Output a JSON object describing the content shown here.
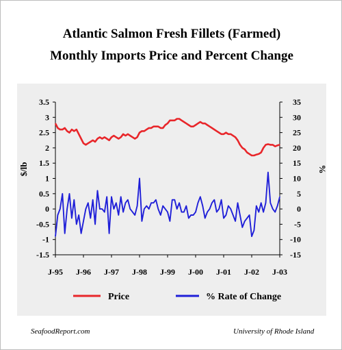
{
  "title_line1": "Atlantic Salmon Fresh Fillets (Farmed)",
  "title_line2": "Monthly Imports Price and Percent Change",
  "footer_left": "SeafoodReport.com",
  "footer_right": "University of Rhode Island",
  "colors": {
    "price": "#e8262a",
    "change": "#1f1fd8",
    "panel": "#eeeeee"
  },
  "chart_data": {
    "type": "line",
    "ylabel_left": "$/lb",
    "ylabel_right": "%",
    "ylim_left": [
      -1.5,
      3.5
    ],
    "ylim_right": [
      -15,
      35
    ],
    "yticks_left": [
      "3.5",
      "3",
      "2.5",
      "2",
      "1.5",
      "1",
      "0.5",
      "0",
      "-0.5",
      "-1",
      "-1.5"
    ],
    "yticks_right": [
      "35",
      "30",
      "25",
      "20",
      "15",
      "10",
      "5",
      "0",
      "-5",
      "-10",
      "-15"
    ],
    "xtick_labels": [
      "J-95",
      "J-96",
      "J-97",
      "J-98",
      "J-99",
      "J-00",
      "J-01",
      "J-02",
      "J-03"
    ],
    "grid": false,
    "legend_position": "bottom",
    "series": [
      {
        "name": "Price",
        "axis": "left",
        "color": "#e8262a",
        "values": [
          2.8,
          2.65,
          2.6,
          2.6,
          2.65,
          2.55,
          2.5,
          2.6,
          2.55,
          2.6,
          2.45,
          2.3,
          2.15,
          2.1,
          2.15,
          2.2,
          2.25,
          2.2,
          2.3,
          2.35,
          2.3,
          2.35,
          2.3,
          2.25,
          2.35,
          2.4,
          2.35,
          2.3,
          2.35,
          2.45,
          2.4,
          2.45,
          2.4,
          2.35,
          2.3,
          2.35,
          2.5,
          2.55,
          2.55,
          2.6,
          2.65,
          2.65,
          2.7,
          2.7,
          2.7,
          2.65,
          2.65,
          2.75,
          2.8,
          2.9,
          2.9,
          2.9,
          2.95,
          2.95,
          2.9,
          2.85,
          2.8,
          2.75,
          2.7,
          2.7,
          2.75,
          2.8,
          2.85,
          2.8,
          2.8,
          2.75,
          2.7,
          2.65,
          2.6,
          2.55,
          2.5,
          2.45,
          2.45,
          2.5,
          2.45,
          2.45,
          2.4,
          2.35,
          2.25,
          2.1,
          2.0,
          1.95,
          1.85,
          1.8,
          1.75,
          1.75,
          1.78,
          1.8,
          1.85,
          2.0,
          2.1,
          2.12,
          2.1,
          2.1,
          2.05,
          2.08,
          2.1
        ]
      },
      {
        "name": "% Rate of Change",
        "axis": "right",
        "color": "#1f1fd8",
        "values": [
          -9,
          -2,
          0,
          5,
          -8,
          0,
          5,
          -3,
          3,
          -5,
          -2,
          -8,
          -4,
          0,
          2,
          -3,
          3,
          -5,
          6,
          0,
          0,
          -1,
          4,
          -8,
          4,
          0,
          2,
          -2,
          4,
          -1,
          2,
          3,
          0,
          -1,
          -2,
          1,
          10,
          -4,
          0,
          1,
          0,
          2,
          2,
          3,
          0,
          -2,
          1,
          0,
          -1,
          -4,
          3,
          3,
          0,
          2,
          -1,
          -1,
          1,
          -3,
          -2,
          -2,
          -1,
          2,
          4,
          1,
          -3,
          -1,
          0,
          2,
          3,
          -1,
          0,
          3,
          -3,
          -2,
          1,
          0,
          -2,
          -4,
          2,
          -2,
          -6,
          -4,
          -3,
          -2,
          -9,
          -7,
          1,
          -1,
          2,
          -1,
          2,
          12,
          2,
          0,
          -1,
          1,
          4
        ]
      }
    ]
  }
}
